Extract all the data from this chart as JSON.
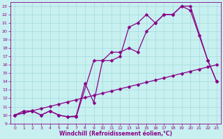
{
  "xlabel": "Windchill (Refroidissement éolien,°C)",
  "bg_color": "#c8f0f0",
  "line_color": "#880088",
  "grid_color": "#aadddd",
  "xlim": [
    -0.5,
    23.5
  ],
  "ylim": [
    9,
    23.5
  ],
  "xticks": [
    0,
    1,
    2,
    3,
    4,
    5,
    6,
    7,
    8,
    9,
    10,
    11,
    12,
    13,
    14,
    15,
    16,
    17,
    18,
    19,
    20,
    21,
    22,
    23
  ],
  "yticks": [
    9,
    10,
    11,
    12,
    13,
    14,
    15,
    16,
    17,
    18,
    19,
    20,
    21,
    22,
    23
  ],
  "line1_x": [
    0,
    1,
    2,
    3,
    4,
    5,
    6,
    7,
    8,
    9,
    10,
    11,
    12,
    13,
    14,
    15,
    16,
    17,
    18,
    19,
    20,
    21,
    22,
    23
  ],
  "line1_y": [
    10,
    10.5,
    10.5,
    10,
    10.5,
    10,
    9.8,
    9.9,
    13.8,
    11.5,
    16.5,
    16.5,
    17,
    20.5,
    21,
    22,
    21,
    22,
    22,
    23,
    22.5,
    19.5,
    16.5,
    14
  ],
  "line2_x": [
    0,
    2,
    3,
    4,
    5,
    6,
    7,
    9,
    10,
    11,
    12,
    13,
    14,
    15,
    16,
    17,
    18,
    19,
    20,
    22,
    23
  ],
  "line2_y": [
    10,
    10.5,
    10,
    10.5,
    10,
    9.8,
    9.8,
    16.5,
    16.5,
    17.5,
    17.5,
    18,
    17.5,
    20,
    21,
    22,
    22,
    23,
    23,
    16.5,
    14
  ],
  "line3_x": [
    0,
    1,
    2,
    3,
    4,
    5,
    6,
    7,
    8,
    9,
    10,
    11,
    12,
    13,
    14,
    15,
    16,
    17,
    18,
    19,
    20,
    21,
    22,
    23
  ],
  "line3_y": [
    10,
    10.26,
    10.52,
    10.78,
    11.04,
    11.3,
    11.57,
    11.83,
    12.09,
    12.35,
    12.61,
    12.87,
    13.13,
    13.39,
    13.65,
    13.91,
    14.17,
    14.43,
    14.7,
    14.96,
    15.22,
    15.48,
    15.74,
    16
  ],
  "markersize": 2.5,
  "linewidth": 0.9,
  "tick_fontsize": 4.5,
  "xlabel_fontsize": 5.5
}
